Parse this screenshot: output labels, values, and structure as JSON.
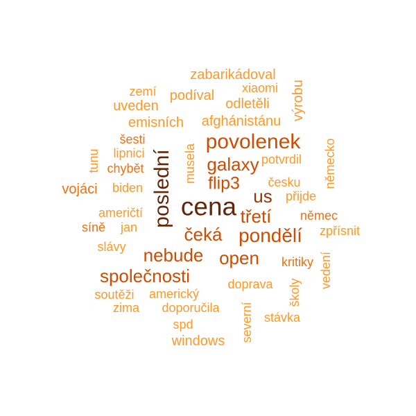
{
  "palette": {
    "darkest": "#662506",
    "dark": "#993404",
    "mid": "#cc4c02",
    "light": "#ec7014",
    "lightest": "#fe9929"
  },
  "words": [
    {
      "text": "cena",
      "weight": 5,
      "vertical": false
    },
    {
      "text": "poslední",
      "weight": 5,
      "vertical": true
    },
    {
      "text": "povolenek",
      "weight": 4,
      "vertical": false
    },
    {
      "text": "galaxy",
      "weight": 4,
      "vertical": false
    },
    {
      "text": "flip3",
      "weight": 4,
      "vertical": false
    },
    {
      "text": "us",
      "weight": 4,
      "vertical": false
    },
    {
      "text": "třetí",
      "weight": 4,
      "vertical": false
    },
    {
      "text": "čeká",
      "weight": 4,
      "vertical": false
    },
    {
      "text": "pondělí",
      "weight": 4,
      "vertical": false
    },
    {
      "text": "nebude",
      "weight": 4,
      "vertical": false
    },
    {
      "text": "open",
      "weight": 4,
      "vertical": false
    },
    {
      "text": "společnosti",
      "weight": 4,
      "vertical": false
    },
    {
      "text": "zabarikádoval",
      "weight": 2,
      "vertical": false
    },
    {
      "text": "xiaomi",
      "weight": 2,
      "vertical": false
    },
    {
      "text": "zemí",
      "weight": 2,
      "vertical": false
    },
    {
      "text": "podíval",
      "weight": 2,
      "vertical": false
    },
    {
      "text": "uveden",
      "weight": 2,
      "vertical": false
    },
    {
      "text": "odletěli",
      "weight": 2,
      "vertical": false
    },
    {
      "text": "výrobu",
      "weight": 2,
      "vertical": true
    },
    {
      "text": "emisních",
      "weight": 2,
      "vertical": false
    },
    {
      "text": "afghánistánu",
      "weight": 2,
      "vertical": false
    },
    {
      "text": "šesti",
      "weight": 2,
      "vertical": false
    },
    {
      "text": "lipnici",
      "weight": 2,
      "vertical": false
    },
    {
      "text": "tunu",
      "weight": 2,
      "vertical": true
    },
    {
      "text": "chybět",
      "weight": 2,
      "vertical": false
    },
    {
      "text": "musela",
      "weight": 2,
      "vertical": true
    },
    {
      "text": "potvrdil",
      "weight": 2,
      "vertical": false
    },
    {
      "text": "německo",
      "weight": 2,
      "vertical": true
    },
    {
      "text": "vojáci",
      "weight": 2,
      "vertical": false
    },
    {
      "text": "biden",
      "weight": 2,
      "vertical": false
    },
    {
      "text": "česku",
      "weight": 2,
      "vertical": false
    },
    {
      "text": "přijde",
      "weight": 2,
      "vertical": false
    },
    {
      "text": "američtí",
      "weight": 2,
      "vertical": false
    },
    {
      "text": "němec",
      "weight": 2,
      "vertical": false
    },
    {
      "text": "síně",
      "weight": 2,
      "vertical": false
    },
    {
      "text": "jan",
      "weight": 2,
      "vertical": false
    },
    {
      "text": "zpřísnit",
      "weight": 2,
      "vertical": false
    },
    {
      "text": "slávy",
      "weight": 2,
      "vertical": false
    },
    {
      "text": "vedení",
      "weight": 2,
      "vertical": true
    },
    {
      "text": "kritiky",
      "weight": 2,
      "vertical": false
    },
    {
      "text": "školy",
      "weight": 2,
      "vertical": true
    },
    {
      "text": "doprava",
      "weight": 2,
      "vertical": false
    },
    {
      "text": "soutěži",
      "weight": 2,
      "vertical": false
    },
    {
      "text": "americký",
      "weight": 2,
      "vertical": false
    },
    {
      "text": "zima",
      "weight": 2,
      "vertical": false
    },
    {
      "text": "doporučila",
      "weight": 2,
      "vertical": false
    },
    {
      "text": "severní",
      "weight": 2,
      "vertical": true
    },
    {
      "text": "stávka",
      "weight": 2,
      "vertical": false
    },
    {
      "text": "spd",
      "weight": 2,
      "vertical": false
    },
    {
      "text": "windows",
      "weight": 2,
      "vertical": false
    }
  ]
}
